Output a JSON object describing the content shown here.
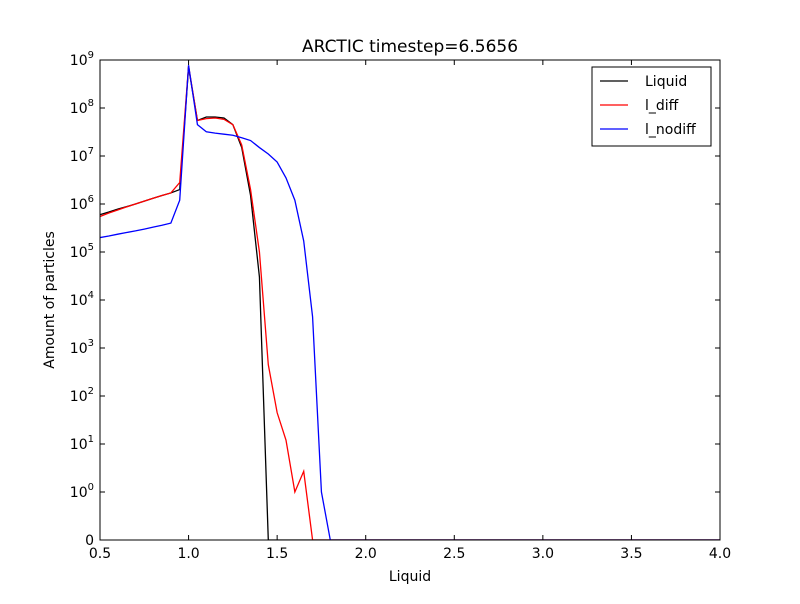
{
  "chart_data": {
    "type": "line",
    "title": "ARCTIC timestep=6.5656",
    "xlabel": "Liquid",
    "ylabel": "Amount of particles",
    "xlim": [
      0.5,
      4.0
    ],
    "y_scale": "symlog",
    "y_linthresh": 1,
    "ylim": [
      0,
      1000000000
    ],
    "grid": false,
    "legend_position": "top-right",
    "x_ticks": [
      0.5,
      1.0,
      1.5,
      2.0,
      2.5,
      3.0,
      3.5,
      4.0
    ],
    "x_tick_labels": [
      "0.5",
      "1.0",
      "1.5",
      "2.0",
      "2.5",
      "3.0",
      "3.5",
      "4.0"
    ],
    "y_ticks": [
      0,
      1,
      10,
      100,
      1000,
      10000,
      100000,
      1000000,
      10000000,
      100000000,
      1000000000
    ],
    "y_tick_labels": [
      {
        "base": "0",
        "exp": ""
      },
      {
        "base": "10",
        "exp": "0"
      },
      {
        "base": "10",
        "exp": "1"
      },
      {
        "base": "10",
        "exp": "2"
      },
      {
        "base": "10",
        "exp": "3"
      },
      {
        "base": "10",
        "exp": "4"
      },
      {
        "base": "10",
        "exp": "5"
      },
      {
        "base": "10",
        "exp": "6"
      },
      {
        "base": "10",
        "exp": "7"
      },
      {
        "base": "10",
        "exp": "8"
      },
      {
        "base": "10",
        "exp": "9"
      }
    ],
    "series": [
      {
        "name": "Liquid",
        "color": "#000000",
        "x": [
          0.5,
          0.55,
          0.6,
          0.65,
          0.7,
          0.75,
          0.8,
          0.85,
          0.9,
          0.95,
          1.0,
          1.05,
          1.1,
          1.15,
          1.2,
          1.25,
          1.3,
          1.35,
          1.4,
          1.45,
          1.5,
          1.55,
          1.6,
          1.65,
          1.7,
          1.75,
          1.8,
          1.85,
          1.9,
          1.95,
          2.0,
          2.5,
          3.0,
          3.5,
          4.0
        ],
        "y": [
          600000,
          680000,
          780000,
          880000,
          1000000,
          1150000,
          1320000,
          1500000,
          1700000,
          2000000,
          700000000,
          55000000,
          65000000,
          65000000,
          62000000,
          45000000,
          15000000,
          1500000,
          30000,
          0,
          0,
          0,
          0,
          0,
          0,
          0,
          0,
          0,
          0,
          0,
          0,
          0,
          0,
          0,
          0
        ]
      },
      {
        "name": "l_diff",
        "color": "#ff0000",
        "x": [
          0.5,
          0.55,
          0.6,
          0.65,
          0.7,
          0.75,
          0.8,
          0.85,
          0.9,
          0.95,
          1.0,
          1.05,
          1.1,
          1.15,
          1.2,
          1.25,
          1.3,
          1.35,
          1.4,
          1.45,
          1.5,
          1.55,
          1.6,
          1.65,
          1.7,
          1.75,
          1.8,
          1.85,
          1.9,
          1.95,
          2.0,
          2.5,
          3.0,
          3.5,
          4.0
        ],
        "y": [
          550000,
          650000,
          750000,
          870000,
          1000000,
          1150000,
          1320000,
          1500000,
          1700000,
          2800000,
          750000000,
          55000000,
          60000000,
          62000000,
          58000000,
          45000000,
          17000000,
          2000000,
          100000,
          450,
          45,
          12,
          1,
          2.7,
          0,
          0,
          0,
          0,
          0,
          0,
          0,
          0,
          0,
          0,
          0
        ]
      },
      {
        "name": "l_nodiff",
        "color": "#0000ff",
        "x": [
          0.5,
          0.55,
          0.6,
          0.65,
          0.7,
          0.75,
          0.8,
          0.85,
          0.9,
          0.95,
          1.0,
          1.05,
          1.1,
          1.15,
          1.2,
          1.25,
          1.3,
          1.35,
          1.4,
          1.45,
          1.5,
          1.55,
          1.6,
          1.65,
          1.7,
          1.75,
          1.8,
          1.85,
          1.9,
          1.95,
          2.0,
          2.5,
          3.0,
          3.5,
          4.0
        ],
        "y": [
          200000,
          215000,
          235000,
          255000,
          275000,
          300000,
          330000,
          360000,
          400000,
          1200000,
          780000000,
          45000000,
          32000000,
          30000000,
          28500000,
          27000000,
          24000000,
          21000000,
          15000000,
          11000000,
          7500000,
          3500000,
          1200000,
          170000,
          4500,
          1,
          0,
          0,
          0,
          0,
          0,
          0,
          0,
          0,
          0
        ]
      }
    ]
  }
}
